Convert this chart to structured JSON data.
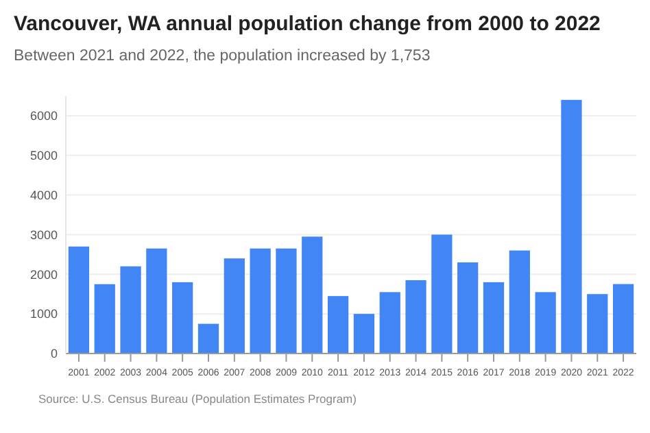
{
  "chart_data": {
    "type": "bar",
    "title": "Vancouver, WA annual population change from 2000 to 2022",
    "subtitle": "Between 2021 and 2022, the population increased by 1,753",
    "categories": [
      "2001",
      "2002",
      "2003",
      "2004",
      "2005",
      "2006",
      "2007",
      "2008",
      "2009",
      "2010",
      "2011",
      "2012",
      "2013",
      "2014",
      "2015",
      "2016",
      "2017",
      "2018",
      "2019",
      "2020",
      "2021",
      "2022"
    ],
    "values": [
      2700,
      1750,
      2200,
      2650,
      1800,
      750,
      2400,
      2650,
      2650,
      2950,
      1450,
      1000,
      1550,
      1850,
      3000,
      2300,
      1800,
      2600,
      1550,
      6400,
      1500,
      1753
    ],
    "color": "#4285f4",
    "ylim": [
      0,
      6500
    ],
    "yticks": [
      0,
      1000,
      2000,
      3000,
      4000,
      5000,
      6000
    ],
    "grid": "y",
    "annotations": [
      "Source: U.S. Census Bureau (Population Estimates Program)"
    ]
  }
}
